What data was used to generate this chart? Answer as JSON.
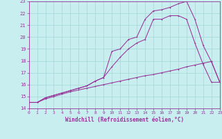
{
  "background_color": "#c8eef0",
  "grid_color": "#a0d8d8",
  "line_color": "#993399",
  "xlim": [
    0,
    23
  ],
  "ylim": [
    14,
    23
  ],
  "ytick_vals": [
    14,
    15,
    16,
    17,
    18,
    19,
    20,
    21,
    22,
    23
  ],
  "xtick_vals": [
    0,
    1,
    2,
    3,
    4,
    5,
    6,
    7,
    8,
    9,
    10,
    11,
    12,
    13,
    14,
    15,
    16,
    17,
    18,
    19,
    20,
    21,
    22,
    23
  ],
  "xlabel": "Windchill (Refroidissement éolien,°C)",
  "line1_x": [
    0,
    1,
    2,
    3,
    4,
    5,
    6,
    7,
    8,
    9,
    10,
    11,
    12,
    13,
    14,
    15,
    16,
    17,
    18,
    19,
    20,
    21,
    22,
    23
  ],
  "line1_y": [
    14.5,
    14.5,
    14.8,
    15.0,
    15.2,
    15.4,
    15.55,
    15.7,
    15.85,
    16.0,
    16.15,
    16.3,
    16.45,
    16.6,
    16.75,
    16.85,
    17.0,
    17.15,
    17.3,
    17.5,
    17.65,
    17.8,
    17.95,
    16.2
  ],
  "line2_x": [
    0,
    1,
    2,
    3,
    4,
    5,
    6,
    7,
    8,
    9,
    10,
    11,
    12,
    13,
    14,
    15,
    16,
    17,
    18,
    19,
    20,
    21,
    22,
    23
  ],
  "line2_y": [
    14.5,
    14.5,
    14.9,
    15.1,
    15.3,
    15.5,
    15.7,
    15.9,
    16.3,
    16.6,
    17.5,
    18.3,
    19.0,
    19.5,
    19.8,
    21.5,
    21.5,
    21.8,
    21.8,
    21.5,
    19.5,
    17.7,
    16.2,
    16.2
  ],
  "line3_x": [
    0,
    1,
    2,
    3,
    4,
    5,
    6,
    7,
    8,
    9,
    10,
    11,
    12,
    13,
    14,
    15,
    16,
    17,
    18,
    19,
    20,
    21,
    22,
    23
  ],
  "line3_y": [
    14.5,
    14.5,
    14.9,
    15.1,
    15.3,
    15.5,
    15.7,
    15.9,
    16.3,
    16.6,
    18.8,
    19.0,
    19.8,
    20.0,
    21.5,
    22.2,
    22.3,
    22.5,
    22.8,
    23.0,
    21.5,
    19.3,
    17.9,
    16.2
  ]
}
